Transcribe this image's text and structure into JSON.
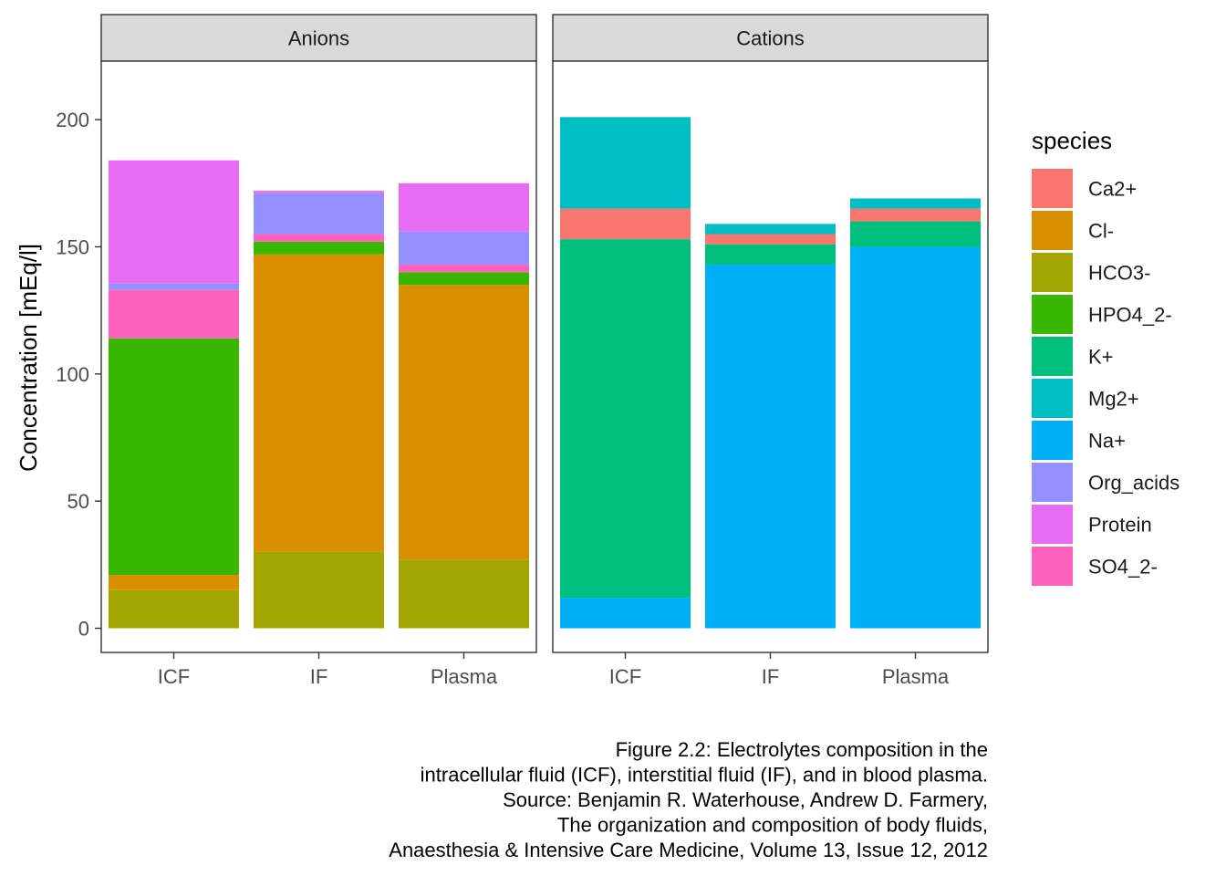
{
  "chart_data": {
    "type": "bar",
    "stacked": true,
    "facet_variable": "type",
    "panels": [
      {
        "name": "Anions",
        "categories": [
          "ICF",
          "IF",
          "Plasma"
        ],
        "stacks": {
          "ICF": [
            {
              "species": "HCO3-",
              "value": 15
            },
            {
              "species": "Cl-",
              "value": 6
            },
            {
              "species": "HPO4_2-",
              "value": 93
            },
            {
              "species": "SO4_2-",
              "value": 19
            },
            {
              "species": "Org_acids",
              "value": 2.5
            },
            {
              "species": "Protein",
              "value": 48.5
            }
          ],
          "IF": [
            {
              "species": "HCO3-",
              "value": 30
            },
            {
              "species": "Cl-",
              "value": 117
            },
            {
              "species": "HPO4_2-",
              "value": 5
            },
            {
              "species": "SO4_2-",
              "value": 3
            },
            {
              "species": "Org_acids",
              "value": 16
            },
            {
              "species": "Protein",
              "value": 1
            }
          ],
          "Plasma": [
            {
              "species": "HCO3-",
              "value": 27
            },
            {
              "species": "Cl-",
              "value": 108
            },
            {
              "species": "HPO4_2-",
              "value": 5
            },
            {
              "species": "SO4_2-",
              "value": 3
            },
            {
              "species": "Org_acids",
              "value": 13
            },
            {
              "species": "Protein",
              "value": 19
            }
          ]
        }
      },
      {
        "name": "Cations",
        "categories": [
          "ICF",
          "IF",
          "Plasma"
        ],
        "stacks": {
          "ICF": [
            {
              "species": "Na+",
              "value": 12
            },
            {
              "species": "K+",
              "value": 141
            },
            {
              "species": "Ca2+",
              "value": 12
            },
            {
              "species": "Mg2+",
              "value": 36
            }
          ],
          "IF": [
            {
              "species": "Na+",
              "value": 143
            },
            {
              "species": "K+",
              "value": 8
            },
            {
              "species": "Ca2+",
              "value": 4
            },
            {
              "species": "Mg2+",
              "value": 4
            }
          ],
          "Plasma": [
            {
              "species": "Na+",
              "value": 150
            },
            {
              "species": "K+",
              "value": 10
            },
            {
              "species": "Ca2+",
              "value": 5
            },
            {
              "species": "Mg2+",
              "value": 4
            }
          ]
        }
      }
    ],
    "ylabel": "Concentration [mEq/l]",
    "xlabel": "",
    "ylim": [
      -9.5,
      223
    ],
    "yticks": [
      0,
      50,
      100,
      150,
      200
    ],
    "legend": {
      "title": "species",
      "position": "right",
      "items": [
        {
          "name": "Ca2+",
          "color": "#F8766D"
        },
        {
          "name": "Cl-",
          "color": "#D89000"
        },
        {
          "name": "HCO3-",
          "color": "#A3A500"
        },
        {
          "name": "HPO4_2-",
          "color": "#39B600"
        },
        {
          "name": "K+",
          "color": "#00BF7D"
        },
        {
          "name": "Mg2+",
          "color": "#00BFC4"
        },
        {
          "name": "Na+",
          "color": "#00B0F6"
        },
        {
          "name": "Org_acids",
          "color": "#9590FF"
        },
        {
          "name": "Protein",
          "color": "#E76BF3"
        },
        {
          "name": "SO4_2-",
          "color": "#FF62BC"
        }
      ]
    },
    "grid": false,
    "caption_lines": [
      "Figure 2.2: Electrolytes composition in the",
      "intracellular fluid (ICF), interstitial fluid (IF), and in blood plasma.",
      "Source: Benjamin R. Waterhouse, Andrew D. Farmery,",
      "The organization and composition of body fluids,",
      "Anaesthesia & Intensive Care Medicine, Volume 13, Issue 12, 2012"
    ],
    "colors": {
      "strip_fill": "#D9D9D9",
      "panel_border": "#333333",
      "axis_text": "#4D4D4D",
      "text": "#1A1A1A"
    }
  }
}
